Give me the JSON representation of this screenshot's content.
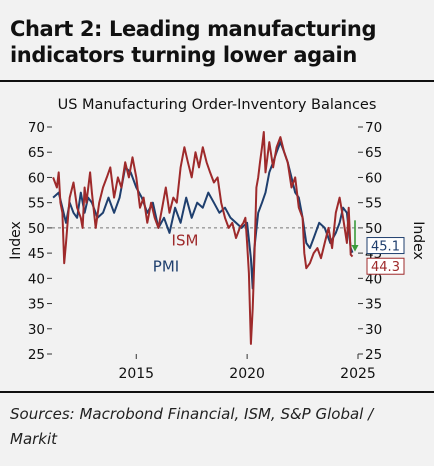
{
  "header": {
    "title_line1": "Chart 2: Leading manufacturing",
    "title_line2": "indicators turning lower again"
  },
  "footer": {
    "sources_line1": "Sources: Macrobond Financial, ISM, S&P Global /",
    "sources_line2": "Markit"
  },
  "colors": {
    "ism": "#9e2a2b",
    "pmi": "#1f3f6e",
    "arrow": "#3a9a3a",
    "reference_line": "#777777",
    "background": "#f2f2f2"
  },
  "chart_data": {
    "type": "line",
    "title": "US Manufacturing Order-Inventory Balances",
    "ylabel_left": "Index",
    "ylabel_right": "Index",
    "xlim": [
      2011.2,
      2025.0
    ],
    "ylim": [
      25,
      70
    ],
    "yticks": [
      25,
      30,
      35,
      40,
      45,
      50,
      55,
      60,
      65,
      70
    ],
    "xticks": [
      2015,
      2020,
      2025
    ],
    "xtick_labels": [
      "2015",
      "2020",
      "2025"
    ],
    "reference_line": 50,
    "series": [
      {
        "name": "ISM",
        "color": "#9e2a2b",
        "last_value_label": "44.3",
        "x": [
          2011.25,
          2011.42,
          2011.5,
          2011.58,
          2011.67,
          2011.75,
          2011.83,
          2011.92,
          2012.0,
          2012.17,
          2012.33,
          2012.5,
          2012.58,
          2012.67,
          2012.75,
          2012.92,
          2013.0,
          2013.17,
          2013.33,
          2013.5,
          2013.67,
          2013.83,
          2014.0,
          2014.17,
          2014.33,
          2014.5,
          2014.67,
          2014.83,
          2015.0,
          2015.17,
          2015.33,
          2015.5,
          2015.67,
          2015.83,
          2016.0,
          2016.17,
          2016.33,
          2016.5,
          2016.67,
          2016.83,
          2017.0,
          2017.17,
          2017.33,
          2017.5,
          2017.67,
          2017.83,
          2018.0,
          2018.17,
          2018.33,
          2018.5,
          2018.67,
          2018.83,
          2019.0,
          2019.17,
          2019.33,
          2019.5,
          2019.67,
          2019.83,
          2019.92,
          2020.0,
          2020.08,
          2020.17,
          2020.25,
          2020.33,
          2020.42,
          2020.5,
          2020.58,
          2020.67,
          2020.75,
          2020.83,
          2021.0,
          2021.17,
          2021.33,
          2021.5,
          2021.67,
          2021.83,
          2022.0,
          2022.17,
          2022.33,
          2022.5,
          2022.58,
          2022.67,
          2022.83,
          2023.0,
          2023.17,
          2023.33,
          2023.5,
          2023.67,
          2023.83,
          2024.0,
          2024.17,
          2024.33,
          2024.5,
          2024.58,
          2024.67,
          2024.75
        ],
        "y": [
          60,
          58,
          61,
          55,
          53,
          43,
          47,
          52,
          56,
          59,
          54,
          52,
          50,
          58,
          55,
          61,
          57,
          50,
          55,
          58,
          60,
          62,
          56,
          60,
          58,
          63,
          60,
          64,
          60,
          54,
          56,
          51,
          55,
          52,
          50,
          54,
          58,
          53,
          56,
          55,
          62,
          66,
          63,
          60,
          65,
          62,
          66,
          63,
          61,
          59,
          60,
          55,
          52,
          50,
          51,
          48,
          50,
          51,
          52,
          47,
          41,
          27,
          34,
          44,
          58,
          60,
          63,
          66,
          69,
          61,
          67,
          62,
          66,
          68,
          65,
          63,
          58,
          60,
          54,
          52,
          45,
          42,
          43,
          45,
          46,
          44,
          47,
          50,
          46,
          53,
          56,
          52,
          47,
          54,
          44.7,
          44.3
        ]
      },
      {
        "name": "PMI",
        "color": "#1f3f6e",
        "last_value_label": "45.1",
        "x": [
          2011.25,
          2011.5,
          2011.67,
          2011.83,
          2012.0,
          2012.17,
          2012.33,
          2012.5,
          2012.67,
          2012.83,
          2013.0,
          2013.25,
          2013.5,
          2013.75,
          2014.0,
          2014.25,
          2014.5,
          2014.75,
          2015.0,
          2015.25,
          2015.5,
          2015.75,
          2016.0,
          2016.25,
          2016.5,
          2016.75,
          2017.0,
          2017.25,
          2017.5,
          2017.75,
          2018.0,
          2018.25,
          2018.5,
          2018.75,
          2019.0,
          2019.25,
          2019.5,
          2019.75,
          2020.0,
          2020.17,
          2020.25,
          2020.33,
          2020.5,
          2020.67,
          2020.83,
          2021.0,
          2021.17,
          2021.33,
          2021.5,
          2021.67,
          2021.83,
          2022.0,
          2022.17,
          2022.33,
          2022.5,
          2022.67,
          2022.83,
          2023.0,
          2023.25,
          2023.5,
          2023.75,
          2024.0,
          2024.17,
          2024.33,
          2024.5,
          2024.67,
          2024.75
        ],
        "y": [
          56,
          57,
          54,
          51,
          55,
          53,
          52,
          57,
          53,
          56,
          55,
          52,
          53,
          56,
          53,
          56,
          62,
          61,
          58,
          56,
          53,
          55,
          50,
          52,
          49,
          54,
          51,
          56,
          52,
          55,
          54,
          57,
          55,
          53,
          54,
          52,
          51,
          50,
          51,
          44,
          38,
          46,
          53,
          55,
          57,
          61,
          63,
          65,
          67,
          65,
          63,
          60,
          57,
          56,
          52,
          47,
          46,
          48,
          51,
          50,
          47,
          49,
          51,
          54,
          53,
          46,
          45.1
        ]
      }
    ],
    "annotations": [
      {
        "text": "ISM",
        "series": "ISM"
      },
      {
        "text": "PMI",
        "series": "PMI"
      }
    ],
    "legend": "inline-labels"
  }
}
